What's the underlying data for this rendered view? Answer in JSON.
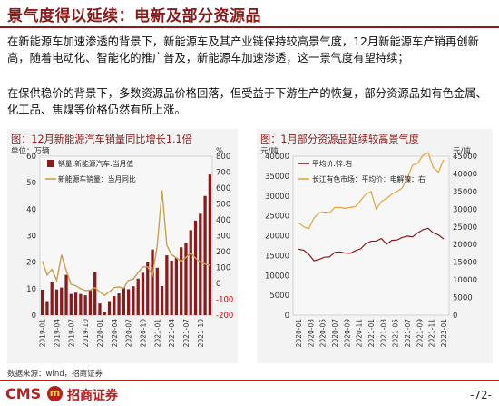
{
  "header": {
    "title": "景气度得以延续：电新及部分资源品"
  },
  "body": {
    "paragraph_1": "在新能源车加速渗透的背景下，新能源车及其产业链保持较高景气度，12月新能源车产销再创新高，随着电动化、智能化的推广普及，新能源车加速渗透，这一景气度有望持续；",
    "paragraph_2": "在保供稳价的背景下，多数资源品价格回落，但受益于下游生产的恢复，部分资源品如有色金属、化工品、焦煤等价格仍然有所上涨。"
  },
  "chart_data": [
    {
      "type": "bar",
      "title": "图：12月新能源汽车销量同比增长1.1倍",
      "left_unit": "单位：万辆",
      "right_unit": "%",
      "categories": [
        "2019-01",
        "2019-02",
        "2019-03",
        "2019-04",
        "2019-05",
        "2019-06",
        "2019-07",
        "2019-08",
        "2019-09",
        "2019-10",
        "2019-11",
        "2019-12",
        "2020-01",
        "2020-02",
        "2020-03",
        "2020-04",
        "2020-05",
        "2020-06",
        "2020-07",
        "2020-08",
        "2020-09",
        "2020-10",
        "2020-11",
        "2020-12",
        "2021-01",
        "2021-02",
        "2021-03",
        "2021-04",
        "2021-05",
        "2021-06",
        "2021-07",
        "2021-08",
        "2021-09",
        "2021-10",
        "2021-11",
        "2021-12"
      ],
      "x_tick_labels": [
        "2019-01",
        "2019-04",
        "2019-07",
        "2019-10",
        "2020-01",
        "2020-04",
        "2020-07",
        "2020-10",
        "2021-01",
        "2021-04",
        "2021-07",
        "2021-10"
      ],
      "series": [
        {
          "name": "销量:新能源汽车:当月值",
          "axis": "left",
          "color": "#8b1a1a",
          "values": [
            9.6,
            5.3,
            12.6,
            9.7,
            10.4,
            15.2,
            8.0,
            8.5,
            8.0,
            7.5,
            9.5,
            16.3,
            4.4,
            1.3,
            5.3,
            7.2,
            8.2,
            10.4,
            9.8,
            10.9,
            13.8,
            16.0,
            20.0,
            24.8,
            17.9,
            11.0,
            22.6,
            20.6,
            21.7,
            25.6,
            27.1,
            32.1,
            35.7,
            38.3,
            45.0,
            53.1
          ]
        },
        {
          "name": "新能源车销量：当月同比",
          "axis": "right",
          "color": "#c8a04a",
          "values": [
            140,
            53,
            88,
            18,
            180,
            80,
            -5,
            -15,
            -34,
            -45,
            -43,
            -27,
            -54,
            -76,
            -53,
            -26,
            -23,
            -30,
            19,
            26,
            68,
            104,
            104,
            49,
            238,
            585,
            239,
            181,
            160,
            139,
            164,
            194,
            158,
            134,
            122,
            114
          ]
        }
      ],
      "ylim_left": [
        0,
        60
      ],
      "ylim_right": [
        -200,
        800
      ],
      "left_ticks": [
        0,
        10,
        20,
        30,
        40,
        50,
        60
      ],
      "right_ticks": [
        -200,
        -100,
        0,
        100,
        200,
        300,
        400,
        500,
        600,
        700,
        800
      ]
    },
    {
      "type": "line",
      "title": "图：1月部分资源品延续较高景气度",
      "left_unit": "元/吨",
      "right_unit": "元/吨",
      "x_tick_labels": [
        "2020-01",
        "2020-03",
        "2020-05",
        "2020-07",
        "2020-09",
        "2020-11",
        "2021-01",
        "2021-03",
        "2021-05",
        "2021-07",
        "2021-09",
        "2021-11",
        "2022-01"
      ],
      "series": [
        {
          "name": "平均价:锌:右",
          "axis": "right",
          "color": "#8b1a1a",
          "values": [
            18700,
            18400,
            17200,
            15400,
            15800,
            16400,
            16500,
            17800,
            17900,
            17600,
            17500,
            18300,
            18800,
            20300,
            20900,
            21000,
            21700,
            20100,
            21200,
            21300,
            22000,
            22400,
            22200,
            23300,
            24200,
            24600,
            23300,
            22700,
            21600
          ]
        },
        {
          "name": "长江有色市场：平均价：电解镍：右",
          "axis": "right",
          "color": "#e4a53a",
          "values": [
            105000,
            100000,
            98000,
            110000,
            116000,
            117000,
            116000,
            122000,
            122000,
            121000,
            122000,
            123000,
            130000,
            137000,
            140000,
            120000,
            129000,
            132000,
            137000,
            140000,
            144000,
            155000,
            170000,
            172000,
            181000,
            184000,
            167000,
            162000,
            176000
          ]
        }
      ],
      "ylim_left": [
        0,
        40000
      ],
      "ylim_right": [
        0,
        45000
      ],
      "left_ticks": [
        0,
        5000,
        10000,
        15000,
        20000,
        25000,
        30000,
        35000,
        40000
      ],
      "right_ticks": [
        0,
        5000,
        10000,
        15000,
        20000,
        25000,
        30000,
        35000,
        40000,
        45000
      ]
    }
  ],
  "footer": {
    "source": "数据来源：wind，招商证券",
    "logo_text": "CMS",
    "logo_badge": "m",
    "logo_cn": "招商证券",
    "page": "-72-"
  }
}
